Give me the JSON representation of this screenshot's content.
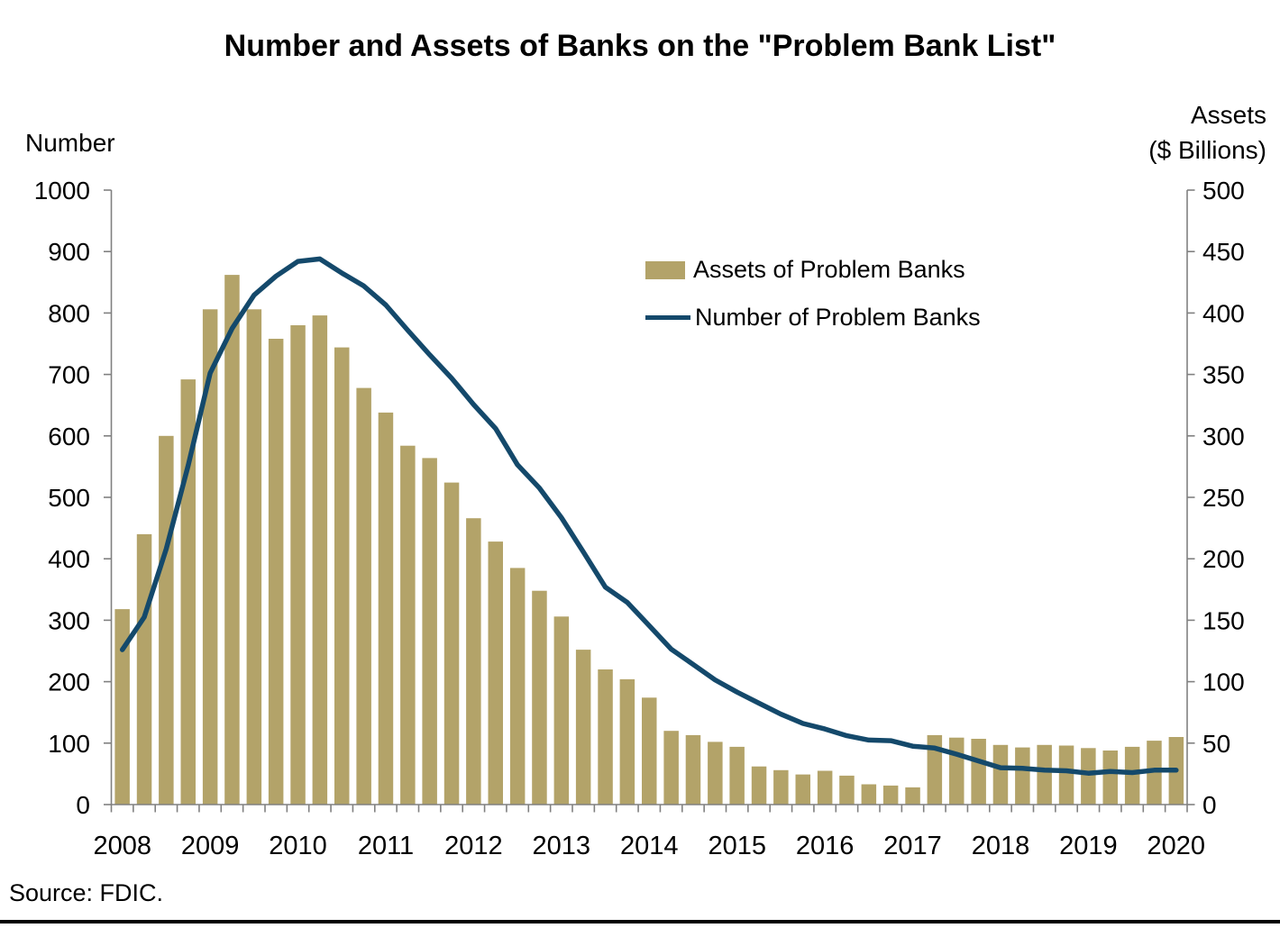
{
  "title": "Number and Assets of Banks on the \"Problem Bank List\"",
  "source": "Source: FDIC.",
  "left_axis": {
    "label": "Number",
    "ticks": [
      0,
      100,
      200,
      300,
      400,
      500,
      600,
      700,
      800,
      900,
      1000
    ]
  },
  "right_axis": {
    "label_line1": "Assets",
    "label_line2": "($ Billions)",
    "ticks": [
      0,
      50,
      100,
      150,
      200,
      250,
      300,
      350,
      400,
      450,
      500
    ]
  },
  "x_axis": {
    "year_labels": [
      "2008",
      "2009",
      "2010",
      "2011",
      "2012",
      "2013",
      "2014",
      "2015",
      "2016",
      "2017",
      "2018",
      "2019",
      "2020"
    ]
  },
  "legend": [
    {
      "label": "Assets of Problem Banks",
      "type": "bar",
      "color": "#b3a369"
    },
    {
      "label": "Number of Problem Banks",
      "type": "line",
      "color": "#14496b"
    }
  ],
  "colors": {
    "bar": "#b3a369",
    "line": "#14496b",
    "axis": "#808080",
    "text": "#000000"
  },
  "chart_data": {
    "type": "bar",
    "subtype": "bar+line dual axis",
    "title": "Number and Assets of Banks on the \"Problem Bank List\"",
    "xlabel": "",
    "ylabel_left": "Number",
    "ylabel_right": "Assets ($ Billions)",
    "left_ylim": [
      0,
      1000
    ],
    "right_ylim": [
      0,
      500
    ],
    "grid": false,
    "legend_position": "upper center-right",
    "categories": [
      "2008 Q4",
      "2009 Q1",
      "2009 Q2",
      "2009 Q3",
      "2009 Q4",
      "2010 Q1",
      "2010 Q2",
      "2010 Q3",
      "2010 Q4",
      "2011 Q1",
      "2011 Q2",
      "2011 Q3",
      "2011 Q4",
      "2012 Q1",
      "2012 Q2",
      "2012 Q3",
      "2012 Q4",
      "2013 Q1",
      "2013 Q2",
      "2013 Q3",
      "2013 Q4",
      "2014 Q1",
      "2014 Q2",
      "2014 Q3",
      "2014 Q4",
      "2015 Q1",
      "2015 Q2",
      "2015 Q3",
      "2015 Q4",
      "2016 Q1",
      "2016 Q2",
      "2016 Q3",
      "2016 Q4",
      "2017 Q1",
      "2017 Q2",
      "2017 Q3",
      "2017 Q4",
      "2018 Q1",
      "2018 Q2",
      "2018 Q3",
      "2018 Q4",
      "2019 Q1",
      "2019 Q2",
      "2019 Q3",
      "2019 Q4",
      "2020 Q1",
      "2020 Q2",
      "2020 Q3",
      "2020 Q4"
    ],
    "series": [
      {
        "name": "Assets of Problem Banks",
        "type": "bar",
        "axis": "right",
        "unit": "$ Billions",
        "color": "#b3a369",
        "values": [
          159,
          220,
          300,
          346,
          403,
          431,
          403,
          379,
          390,
          398,
          372,
          339,
          319,
          292,
          282,
          262,
          233,
          214,
          192.5,
          174,
          153,
          126,
          110,
          102,
          87,
          60,
          56.5,
          51,
          47,
          31,
          28,
          24.5,
          27.5,
          23.5,
          16.5,
          15.5,
          14,
          56.5,
          54.5,
          53.5,
          48.5,
          46.5,
          48.5,
          48,
          46,
          44,
          47,
          52,
          55
        ]
      },
      {
        "name": "Number of Problem Banks",
        "type": "line",
        "axis": "left",
        "unit": "banks",
        "color": "#14496b",
        "values": [
          252,
          305,
          416,
          552,
          702,
          775,
          829,
          860,
          884,
          888,
          865,
          844,
          813,
          772,
          732,
          694,
          651,
          612,
          553,
          515,
          467,
          411,
          354,
          329,
          291,
          253,
          228,
          203,
          183,
          165,
          147,
          132,
          123,
          112,
          105,
          104,
          95,
          92,
          82,
          71,
          60,
          59,
          56,
          55,
          51,
          54,
          52,
          56,
          56
        ]
      }
    ]
  }
}
